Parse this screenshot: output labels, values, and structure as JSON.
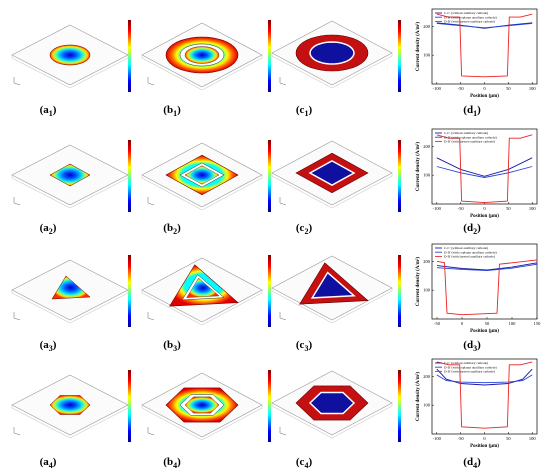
{
  "rows": [
    {
      "shape": "circle",
      "panels": {
        "a": {
          "label": "a",
          "sub": "1"
        },
        "b": {
          "label": "b",
          "sub": "1"
        },
        "c": {
          "label": "c",
          "sub": "1"
        },
        "d": {
          "label": "d",
          "sub": "1"
        }
      }
    },
    {
      "shape": "square",
      "panels": {
        "a": {
          "label": "a",
          "sub": "2"
        },
        "b": {
          "label": "b",
          "sub": "2"
        },
        "c": {
          "label": "c",
          "sub": "2"
        },
        "d": {
          "label": "d",
          "sub": "2"
        }
      }
    },
    {
      "shape": "triangle",
      "panels": {
        "a": {
          "label": "a",
          "sub": "3"
        },
        "b": {
          "label": "b",
          "sub": "3"
        },
        "c": {
          "label": "c",
          "sub": "3"
        },
        "d": {
          "label": "d",
          "sub": "3"
        }
      }
    },
    {
      "shape": "hexagon",
      "panels": {
        "a": {
          "label": "a",
          "sub": "4"
        },
        "b": {
          "label": "b",
          "sub": "4"
        },
        "c": {
          "label": "c",
          "sub": "4"
        },
        "d": {
          "label": "d",
          "sub": "4"
        }
      }
    }
  ],
  "chart_data": [
    {
      "type": "line",
      "xlabel": "Position (μm)",
      "ylabel": "Current density (A/m²)",
      "xticks": [
        -100,
        -50,
        0,
        50,
        100
      ],
      "yticks": [
        100,
        200
      ],
      "xlim": [
        -110,
        110
      ],
      "ylim": [
        0,
        260
      ],
      "legend": [
        "C-C' (without auxiliary cathode)",
        "D-D' (with coplanar auxiliary cathode)",
        "D-D' (with layered auxiliary cathode)"
      ],
      "series": [
        {
          "name": "C-C' (without auxiliary cathode)",
          "color": "#1a1aa0",
          "x": [
            -100,
            -50,
            0,
            50,
            100
          ],
          "y": [
            212,
            204,
            193,
            204,
            212
          ]
        },
        {
          "name": "D-D' (with coplanar auxiliary cathode)",
          "color": "#2244dd",
          "x": [
            -100,
            -50,
            0,
            50,
            100
          ],
          "y": [
            210,
            202,
            195,
            202,
            210
          ]
        },
        {
          "name": "D-D' (with layered auxiliary cathode)",
          "color": "#ee2222",
          "x": [
            -100,
            -75,
            -52,
            -48,
            0,
            48,
            52,
            75,
            100
          ],
          "y": [
            242,
            232,
            232,
            28,
            25,
            28,
            232,
            232,
            242
          ]
        }
      ]
    },
    {
      "type": "line",
      "xlabel": "Position (μm)",
      "ylabel": "Current density (A/m²)",
      "xticks": [
        -100,
        -50,
        0,
        50,
        100
      ],
      "yticks": [
        100,
        200
      ],
      "xlim": [
        -110,
        110
      ],
      "ylim": [
        0,
        260
      ],
      "legend": [
        "C-C' (without auxiliary cathode)",
        "D-D' (with coplanar auxiliary cathode)",
        "D-D' (with layered auxiliary cathode)"
      ],
      "series": [
        {
          "name": "C-C' (without auxiliary cathode)",
          "color": "#1a1aa0",
          "x": [
            -100,
            -50,
            0,
            50,
            100
          ],
          "y": [
            160,
            120,
            96,
            120,
            160
          ]
        },
        {
          "name": "D-D' (with coplanar auxiliary cathode)",
          "color": "#2244dd",
          "x": [
            -100,
            -50,
            0,
            50,
            100
          ],
          "y": [
            130,
            108,
            92,
            108,
            130
          ]
        },
        {
          "name": "D-D' (with layered auxiliary cathode)",
          "color": "#ee2222",
          "x": [
            -100,
            -75,
            -52,
            -48,
            0,
            48,
            52,
            75,
            100
          ],
          "y": [
            240,
            228,
            228,
            10,
            5,
            10,
            228,
            228,
            240
          ]
        }
      ]
    },
    {
      "type": "line",
      "xlabel": "Position (μm)",
      "ylabel": "Current density (A/m²)",
      "xticks": [
        -50,
        0,
        50,
        100,
        150
      ],
      "yticks": [
        100,
        200
      ],
      "xlim": [
        -60,
        150
      ],
      "ylim": [
        0,
        260
      ],
      "legend": [
        "C-C' (without auxiliary cathode)",
        "D-D' (with coplanar auxiliary cathode)",
        "D-D' (with layered auxiliary cathode)"
      ],
      "series": [
        {
          "name": "C-C' (without auxiliary cathode)",
          "color": "#1a1aa0",
          "x": [
            -50,
            0,
            50,
            100,
            150
          ],
          "y": [
            185,
            175,
            170,
            180,
            195
          ]
        },
        {
          "name": "D-D' (with coplanar auxiliary cathode)",
          "color": "#2244dd",
          "x": [
            -50,
            0,
            50,
            100,
            150
          ],
          "y": [
            178,
            172,
            168,
            176,
            190
          ]
        },
        {
          "name": "D-D' (with layered auxiliary cathode)",
          "color": "#ee2222",
          "x": [
            -50,
            -35,
            -30,
            0,
            70,
            75,
            100,
            150
          ],
          "y": [
            200,
            195,
            20,
            15,
            20,
            190,
            195,
            205
          ]
        }
      ]
    },
    {
      "type": "line",
      "xlabel": "Position (μm)",
      "ylabel": "Current density (A/m²)",
      "xticks": [
        -100,
        -50,
        0,
        50,
        100
      ],
      "yticks": [
        100,
        200
      ],
      "xlim": [
        -110,
        110
      ],
      "ylim": [
        0,
        260
      ],
      "legend": [
        "C-C' (without auxiliary cathode)",
        "D-D' (with coplanar auxiliary cathode)",
        "D-D' (with layered auxiliary cathode)"
      ],
      "series": [
        {
          "name": "C-C' (without auxiliary cathode)",
          "color": "#1a1aa0",
          "x": [
            -100,
            -80,
            -50,
            0,
            50,
            80,
            100
          ],
          "y": [
            225,
            190,
            175,
            170,
            175,
            190,
            225
          ]
        },
        {
          "name": "D-D' (with coplanar auxiliary cathode)",
          "color": "#2244dd",
          "x": [
            -100,
            -80,
            -50,
            0,
            50,
            80,
            100
          ],
          "y": [
            205,
            185,
            180,
            178,
            180,
            185,
            205
          ]
        },
        {
          "name": "D-D' (with layered auxiliary cathode)",
          "color": "#ee2222",
          "x": [
            -100,
            -75,
            -52,
            -48,
            0,
            48,
            52,
            75,
            100
          ],
          "y": [
            250,
            240,
            240,
            25,
            20,
            25,
            240,
            240,
            250
          ]
        }
      ]
    }
  ]
}
